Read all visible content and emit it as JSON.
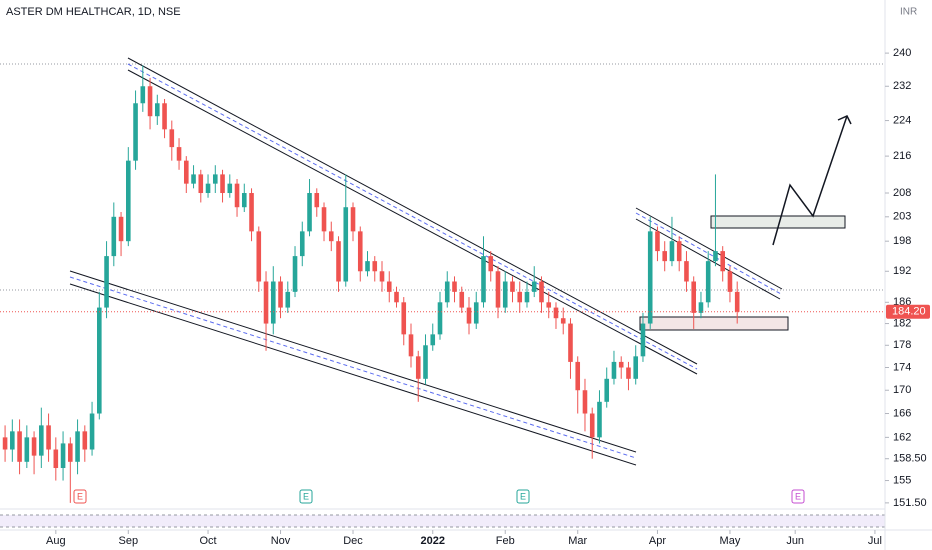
{
  "chart_data": {
    "type": "candlestick",
    "title": "ASTER DM HEALTHCAR, 1D, NSE",
    "currency": "INR",
    "log": true,
    "up_color": "#26a69a",
    "down_color": "#ef5350",
    "open": [
      162,
      160,
      163,
      158,
      162,
      159,
      164,
      160,
      157,
      161,
      158,
      163,
      160,
      166,
      185,
      195,
      203,
      198,
      215,
      228,
      232,
      225,
      228,
      222,
      218,
      215,
      210,
      212,
      208,
      210,
      212,
      208,
      210,
      205,
      208,
      200,
      190,
      182,
      190,
      185,
      188,
      195,
      200,
      208,
      205,
      200,
      198,
      190,
      205,
      200,
      192,
      194,
      192,
      190,
      188,
      186,
      180,
      176,
      172,
      178,
      180,
      186,
      190,
      188,
      185,
      182,
      186,
      195,
      192,
      185,
      190,
      188,
      186,
      188,
      190,
      186,
      185,
      183,
      182,
      175,
      170,
      166,
      162,
      168,
      172,
      175,
      174,
      172,
      176,
      182,
      200,
      196,
      194,
      198,
      194,
      190,
      184,
      186,
      194,
      196,
      192,
      188
    ],
    "high": [
      164,
      165,
      165,
      164,
      163,
      167,
      166,
      162,
      163,
      162,
      165,
      164,
      168,
      188,
      198,
      206,
      204,
      218,
      231,
      237,
      234,
      230,
      229,
      224,
      220,
      216,
      214,
      213,
      212,
      214,
      213,
      212,
      211,
      210,
      209,
      201,
      192,
      193,
      191,
      190,
      197,
      202,
      211,
      209,
      206,
      202,
      199,
      212,
      206,
      201,
      196,
      195,
      194,
      192,
      189,
      187,
      182,
      177,
      180,
      182,
      188,
      192,
      191,
      189,
      187,
      188,
      199,
      196,
      193,
      192,
      191,
      190,
      190,
      193,
      191,
      188,
      186,
      185,
      183,
      176,
      172,
      167,
      170,
      174,
      177,
      176,
      175,
      178,
      184,
      203,
      201,
      198,
      203,
      199,
      196,
      191,
      188,
      196,
      212,
      197,
      193,
      190
    ],
    "low": [
      158,
      158,
      156,
      157,
      156,
      157,
      158,
      155,
      155,
      151.5,
      156,
      158,
      159,
      165,
      183,
      193,
      195,
      197,
      213,
      226,
      222,
      223,
      220,
      215,
      213,
      208,
      209,
      206,
      207,
      208,
      206,
      207,
      203,
      204,
      198,
      188,
      177,
      180,
      183,
      184,
      187,
      193,
      199,
      203,
      198,
      196,
      188,
      189,
      198,
      190,
      191,
      190,
      188,
      186,
      185,
      178,
      174,
      168,
      171,
      177,
      179,
      185,
      186,
      184,
      180,
      181,
      185,
      190,
      183,
      184,
      186,
      184,
      185,
      187,
      184,
      183,
      181,
      180,
      172,
      166,
      163,
      158.5,
      161,
      167,
      171,
      172,
      170,
      171,
      175,
      181,
      194,
      192,
      193,
      192,
      188,
      181,
      183,
      185,
      193,
      190,
      186,
      182
    ],
    "close": [
      160,
      163,
      158,
      162,
      159,
      164,
      160,
      157,
      161,
      158,
      163,
      160,
      166,
      185,
      195,
      203,
      198,
      215,
      228,
      232,
      225,
      228,
      222,
      218,
      215,
      210,
      212,
      208,
      210,
      212,
      208,
      210,
      205,
      208,
      200,
      190,
      182,
      190,
      185,
      188,
      195,
      200,
      208,
      205,
      200,
      198,
      190,
      205,
      200,
      192,
      194,
      192,
      190,
      188,
      186,
      180,
      176,
      172,
      178,
      180,
      186,
      190,
      188,
      185,
      182,
      186,
      195,
      192,
      185,
      190,
      188,
      186,
      188,
      190,
      186,
      185,
      183,
      182,
      175,
      170,
      166,
      162,
      168,
      172,
      175,
      174,
      172,
      176,
      182,
      200,
      196,
      194,
      198,
      194,
      190,
      184,
      186,
      194,
      196,
      192,
      188,
      184.2
    ],
    "price_label": {
      "value": 184.2,
      "label": "184.20"
    },
    "xlim": [
      -0.7,
      120.7
    ],
    "xticks": [
      {
        "value": 7,
        "label": "Aug"
      },
      {
        "value": 17,
        "label": "Sep"
      },
      {
        "value": 28,
        "label": "Oct"
      },
      {
        "value": 38,
        "label": "Nov"
      },
      {
        "value": 48,
        "label": "Dec"
      },
      {
        "value": 59,
        "label": "2022"
      },
      {
        "value": 69,
        "label": "Feb"
      },
      {
        "value": 79,
        "label": "Mar"
      },
      {
        "value": 90,
        "label": "Apr"
      },
      {
        "value": 100,
        "label": "May"
      },
      {
        "value": 109,
        "label": "Jun"
      },
      {
        "value": 120,
        "label": "Jul"
      }
    ],
    "ylim": [
      150.4,
      253.4
    ],
    "yticks": [
      240,
      232,
      224,
      216,
      208,
      203,
      198,
      192,
      186,
      182,
      178,
      174,
      170,
      166,
      162,
      {
        "value": 158.5,
        "label": "158.50"
      },
      155,
      {
        "value": 151.5,
        "label": "151.50"
      }
    ],
    "events": [
      "E",
      "E",
      "E",
      "E"
    ]
  }
}
